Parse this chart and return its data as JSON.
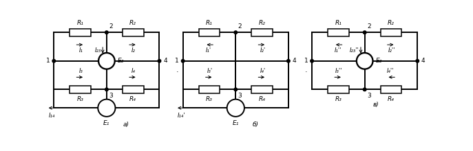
{
  "bg_color": "#ffffff",
  "figsize": [
    6.87,
    2.2
  ],
  "dpi": 100,
  "xlim": [
    0,
    6.87
  ],
  "ylim": [
    -0.5,
    2.2
  ],
  "diagrams": [
    {
      "label": "а)",
      "ox": 0.18,
      "has_E2": true,
      "has_E1": true,
      "I1_text": "I₁",
      "I1_dir": 1,
      "I2_text": "I₂",
      "I2_dir": 1,
      "I3_text": "I₃",
      "I3_dir": 1,
      "I4_text": "I₄",
      "I4_dir": 1,
      "I23_text": "I₂₃",
      "I14_text": "I₁₄",
      "I14_dir": -1
    },
    {
      "label": "б)",
      "ox": 2.48,
      "has_E2": false,
      "has_E1": true,
      "I1_text": "I₁'",
      "I1_dir": -1,
      "I2_text": "I₂'",
      "I2_dir": 1,
      "I3_text": "I₃'",
      "I3_dir": 1,
      "I4_text": "I₄'",
      "I4_dir": 1,
      "I23_text": "",
      "I14_text": "I₁₄'",
      "I14_dir": -1
    },
    {
      "label": "в)",
      "ox": 4.78,
      "has_E2": true,
      "has_E1": false,
      "I1_text": "I₁''",
      "I1_dir": -1,
      "I2_text": "I₂''",
      "I2_dir": 1,
      "I3_text": "I₃''",
      "I3_dir": 1,
      "I4_text": "I₄''",
      "I4_dir": -1,
      "I23_text": "I₂₃''",
      "I14_text": "",
      "I14_dir": -1
    }
  ]
}
